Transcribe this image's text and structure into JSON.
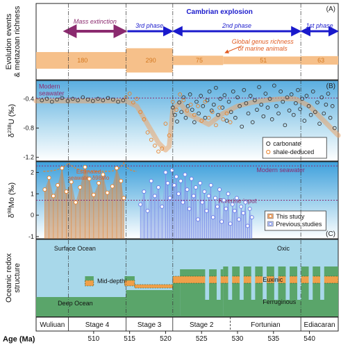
{
  "chart_data": [
    {
      "panel": "A",
      "type": "area",
      "panel_label": "(A)",
      "ylabel": "Evolution events\n& metazoan richness",
      "events": [
        {
          "label": "Mass extinction",
          "from": 505.9,
          "to": 514.5,
          "color": "#8b2a6f"
        },
        {
          "label": "3rd phase",
          "from": 514.5,
          "to": 521.0,
          "color": "#1a1acc"
        },
        {
          "label": "2nd phase",
          "from": 521.0,
          "to": 538.8,
          "color": "#1a1acc"
        },
        {
          "label": "1st phase",
          "from": 538.8,
          "to": 544.0,
          "color": "#1a1acc"
        }
      ],
      "event_header": "Cambrian explosion",
      "richness_label": "Global genus richness\nof marine animals",
      "richness_blocks": [
        {
          "from": 502.0,
          "to": 514.5,
          "value": 180
        },
        {
          "from": 514.5,
          "to": 521.0,
          "value": 290
        },
        {
          "from": 521.0,
          "to": 528.0,
          "value": 75
        },
        {
          "from": 528.0,
          "to": 538.8,
          "value": 51
        },
        {
          "from": 538.8,
          "to": 544.0,
          "value": 63
        }
      ]
    },
    {
      "panel": "B",
      "type": "scatter",
      "panel_label": "(B)",
      "ylabel": "δ238U (‰)",
      "ylim": [
        -1.25,
        -0.15
      ],
      "yticks": [
        -0.4,
        -0.8,
        -1.2
      ],
      "reference_line": {
        "label": "Modern\nseawater",
        "y": -0.39
      },
      "legend": [
        "carbonate",
        "shale-deduced"
      ],
      "series": [
        {
          "name": "carbonate",
          "color": "#333333",
          "x": [
            502.8,
            503.5,
            504.2,
            504.9,
            505.6,
            506.4,
            507.1,
            507.8,
            508.5,
            509.2,
            509.9,
            510.6,
            511.3,
            512.0,
            512.7,
            513.4,
            514.1,
            521.0,
            521.3,
            521.6,
            521.9,
            522.2,
            522.5,
            522.8,
            523.1,
            523.4,
            523.7,
            524.0,
            524.3,
            524.6,
            524.9,
            525.2,
            525.5,
            525.8,
            526.1,
            526.4,
            526.7,
            527.0,
            527.3,
            527.6,
            527.9,
            528.2,
            528.5,
            528.8,
            529.1,
            529.4,
            529.7,
            530.0,
            530.3,
            530.6,
            530.9,
            531.2,
            531.5,
            531.8,
            532.1,
            532.4,
            532.7,
            533.0,
            533.3,
            533.6,
            533.9,
            534.2,
            534.5,
            534.8,
            535.1,
            535.4,
            535.7,
            536.0,
            536.3,
            536.6,
            536.9,
            537.2,
            537.5,
            537.8,
            538.1,
            538.4,
            538.7,
            539.0,
            539.3,
            539.6,
            539.9,
            540.2,
            540.5,
            540.8,
            541.1,
            541.4,
            541.7,
            542.0,
            542.3,
            542.6,
            542.9,
            543.2,
            543.5
          ],
          "y": [
            -0.42,
            -0.4,
            -0.44,
            -0.41,
            -0.39,
            -0.43,
            -0.4,
            -0.42,
            -0.38,
            -0.41,
            -0.43,
            -0.4,
            -0.42,
            -0.39,
            -0.41,
            -0.44,
            -0.42,
            -0.52,
            -0.62,
            -0.71,
            -0.45,
            -0.58,
            -0.38,
            -0.66,
            -0.5,
            -0.34,
            -0.55,
            -0.72,
            -0.44,
            -0.6,
            -0.36,
            -0.5,
            -0.66,
            -0.42,
            -0.3,
            -0.56,
            -0.48,
            -0.25,
            -0.62,
            -0.4,
            -0.52,
            -0.35,
            -0.7,
            -0.44,
            -0.58,
            -0.3,
            -0.66,
            -0.38,
            -0.5,
            -0.78,
            -0.28,
            -0.46,
            -0.6,
            -0.36,
            -0.72,
            -0.42,
            -0.55,
            -0.24,
            -0.48,
            -0.64,
            -0.33,
            -0.52,
            -0.4,
            -0.68,
            -0.22,
            -0.5,
            -0.6,
            -0.3,
            -0.44,
            -0.76,
            -0.38,
            -0.56,
            -0.34,
            -0.62,
            -0.46,
            -0.28,
            -0.54,
            -0.4,
            -0.7,
            -0.36,
            -0.5,
            -0.62,
            -0.3,
            -0.58,
            -0.45,
            -0.74,
            -0.38,
            -0.6,
            -0.48,
            -0.33,
            -0.66,
            -0.5,
            -0.8
          ]
        },
        {
          "name": "shale-deduced",
          "color": "#e8822a",
          "x": [
            514.5,
            515.0,
            515.5,
            516.0,
            516.5,
            517.0,
            517.5,
            518.0,
            518.5,
            519.0,
            519.5,
            520.0,
            520.5,
            521.0,
            521.5,
            522.0,
            522.5,
            523.0,
            523.5,
            524.0,
            524.5,
            525.0,
            525.5,
            526.0,
            526.5,
            527.0,
            527.5,
            528.0,
            528.5,
            529.0
          ],
          "y": [
            -0.38,
            -0.33,
            -0.45,
            -0.4,
            -0.58,
            -0.68,
            -0.86,
            -0.96,
            -1.04,
            -1.12,
            -1.08,
            -0.74,
            -0.9,
            -0.44,
            -0.55,
            -0.34,
            -0.42,
            -0.56,
            -0.48,
            -0.62,
            -0.5,
            -0.7,
            -0.44,
            -0.66,
            -0.58,
            -0.76,
            -0.52,
            -0.68,
            -0.6,
            -0.72
          ]
        }
      ],
      "trend": {
        "x": [
          502,
          514.5,
          516,
          517.5,
          519,
          520,
          520.5,
          521,
          522,
          523,
          524,
          526,
          528,
          530,
          532,
          534,
          536,
          538,
          540,
          542,
          544
        ],
        "y": [
          -0.43,
          -0.43,
          -0.5,
          -0.75,
          -1.0,
          -1.1,
          -1.05,
          -0.55,
          -0.45,
          -0.6,
          -0.65,
          -0.75,
          -0.6,
          -0.5,
          -0.45,
          -0.42,
          -0.4,
          -0.4,
          -0.5,
          -0.7,
          -0.9
        ]
      }
    },
    {
      "panel": "C",
      "type": "scatter",
      "panel_label": "(C)",
      "ylabel": "δ98Mo (‰)",
      "ylim": [
        -1.1,
        2.5
      ],
      "yticks": [
        2,
        1,
        0,
        -1
      ],
      "reference_lines": [
        {
          "label": "Modern seawater",
          "y": 2.3
        },
        {
          "label": "Riverine input",
          "y": 0.7
        }
      ],
      "annotation": "Estimated\nseawater δ98Mo",
      "legend": [
        "This study",
        "Previous studies"
      ],
      "series": [
        {
          "name": "This study",
          "color": "#e8822a",
          "x": [
            503.2,
            503.8,
            504.4,
            505.0,
            505.6,
            506.2,
            506.9,
            507.5,
            508.1,
            508.8,
            509.4,
            510.0,
            510.7,
            511.3,
            511.9,
            512.6,
            513.2,
            513.8,
            514.2
          ],
          "y": [
            1.2,
            1.75,
            0.9,
            1.4,
            2.2,
            1.1,
            1.55,
            0.6,
            1.3,
            2.25,
            1.7,
            0.95,
            1.5,
            1.9,
            1.05,
            1.35,
            2.2,
            1.6,
            0.8
          ]
        },
        {
          "name": "Previous studies",
          "color": "#6a7ce8",
          "x": [
            516.5,
            517.0,
            517.5,
            518.0,
            518.5,
            519.0,
            519.5,
            520.0,
            520.3,
            520.6,
            520.9,
            521.2,
            521.5,
            521.8,
            522.1,
            522.4,
            522.7,
            523.0,
            523.3,
            523.6,
            523.9,
            524.2,
            524.5,
            524.8,
            525.1,
            525.4,
            525.7,
            526.0,
            526.3,
            526.6,
            526.9,
            527.2,
            527.5,
            527.8,
            528.1,
            528.4,
            528.7,
            529.0,
            529.3,
            529.6,
            529.9,
            530.2,
            530.5,
            530.8,
            531.1,
            531.4,
            531.7,
            532.0
          ],
          "y": [
            0.5,
            1.1,
            0.2,
            1.6,
            0.9,
            1.3,
            0.4,
            2.0,
            1.5,
            0.8,
            2.1,
            1.4,
            1.8,
            1.0,
            1.6,
            0.6,
            1.9,
            1.2,
            0.3,
            1.7,
            0.9,
            1.3,
            -0.2,
            1.5,
            0.6,
            1.1,
            0.2,
            0.9,
            1.4,
            -0.1,
            0.8,
            0.4,
            1.2,
            -0.3,
            0.7,
            0.3,
            1.0,
            -0.4,
            0.5,
            0.2,
            0.8,
            -0.2,
            0.4,
            0.1,
            0.6,
            -0.5,
            0.3,
            -0.1
          ]
        }
      ]
    },
    {
      "panel": "D",
      "type": "diagram",
      "panel_label": "(D)",
      "ylabel": "Oceanic redox\nstructure",
      "labels": {
        "surface": "Surface Ocean",
        "mid": "Mid-depth",
        "deep": "Deep Ocean",
        "oxic": "Oxic",
        "euxinic": "Euxinic",
        "ferruginous": "Ferruginous"
      },
      "colors": {
        "oxic": "#a8d8ea",
        "euxinic": "#f0a04a",
        "ferruginous": "#5aa56a"
      }
    }
  ],
  "x_axis": {
    "label": "Age (Ma)",
    "xlim": [
      502,
      544
    ],
    "ticks": [
      510,
      515,
      520,
      525,
      530,
      535,
      540
    ],
    "stages": [
      {
        "name": "Wuliuan",
        "from": 502.0,
        "to": 506.5
      },
      {
        "name": "Stage 4",
        "from": 506.5,
        "to": 514.5
      },
      {
        "name": "Stage 3",
        "from": 514.5,
        "to": 521.0
      },
      {
        "name": "Stage 2",
        "from": 521.0,
        "to": 529.0
      },
      {
        "name": "Fortunian",
        "from": 529.0,
        "to": 538.8
      },
      {
        "name": "Ediacaran",
        "from": 538.8,
        "to": 544.0
      }
    ]
  }
}
